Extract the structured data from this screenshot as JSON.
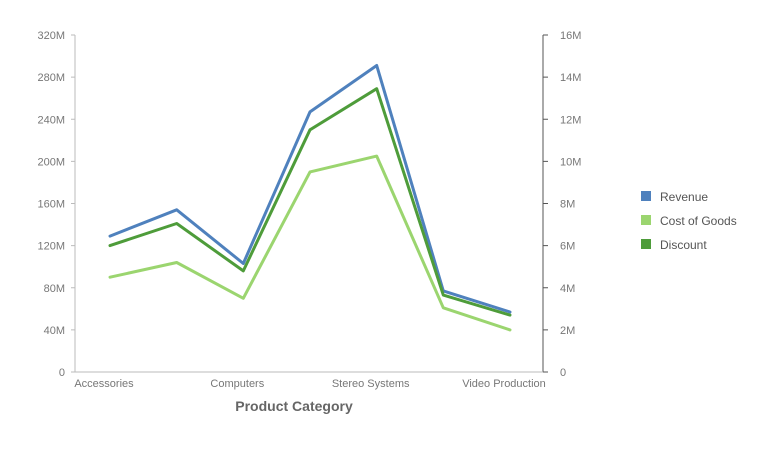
{
  "chart_data": {
    "type": "line",
    "xlabel": "Product Category",
    "categories": [
      "Accessories",
      "",
      "Computers",
      "",
      "Stereo Systems",
      "",
      "Video Production"
    ],
    "x_tick_labels": [
      "Accessories",
      "Computers",
      "Stereo Systems",
      "Video Production"
    ],
    "y_left": {
      "ylim": [
        0,
        320000000
      ],
      "tick_values": [
        0,
        40000000,
        80000000,
        120000000,
        160000000,
        200000000,
        240000000,
        280000000,
        320000000
      ],
      "tick_labels": [
        "0",
        "40M",
        "80M",
        "120M",
        "160M",
        "200M",
        "240M",
        "280M",
        "320M"
      ]
    },
    "y_right": {
      "ylim": [
        0,
        16000000
      ],
      "tick_values": [
        0,
        2000000,
        4000000,
        6000000,
        8000000,
        10000000,
        12000000,
        14000000,
        16000000
      ],
      "tick_labels": [
        "0",
        "2M",
        "4M",
        "6M",
        "8M",
        "10M",
        "12M",
        "14M",
        "16M"
      ]
    },
    "series": [
      {
        "name": "Revenue",
        "axis": "left",
        "color": "#4f81bd",
        "values": [
          129000000,
          154000000,
          103000000,
          247000000,
          291000000,
          77000000,
          57000000
        ]
      },
      {
        "name": "Cost of Goods",
        "axis": "left",
        "color": "#9bd56f",
        "values": [
          90000000,
          104000000,
          70000000,
          190000000,
          205000000,
          61000000,
          40000000
        ]
      },
      {
        "name": "Discount",
        "axis": "right",
        "color": "#4e9c3a",
        "values": [
          6000000,
          7050000,
          4800000,
          11500000,
          13450000,
          3650000,
          2700000
        ]
      }
    ],
    "legend_position": "right",
    "grid": false
  }
}
